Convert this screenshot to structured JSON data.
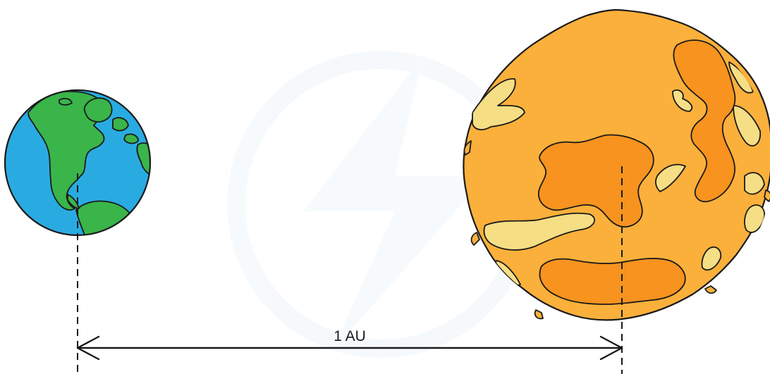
{
  "diagram": {
    "distance_label": "1 AU",
    "colors": {
      "earth_ocean": "#29abe2",
      "earth_land": "#39b54a",
      "sun_base": "#fbb03b",
      "sun_dark_spots": "#f7931e",
      "sun_light_spots": "#f5de84",
      "watermark": "#eef5fa"
    },
    "nodes": [
      {
        "id": "earth",
        "icon": "earth-icon"
      },
      {
        "id": "sun",
        "icon": "sun-icon"
      }
    ]
  }
}
